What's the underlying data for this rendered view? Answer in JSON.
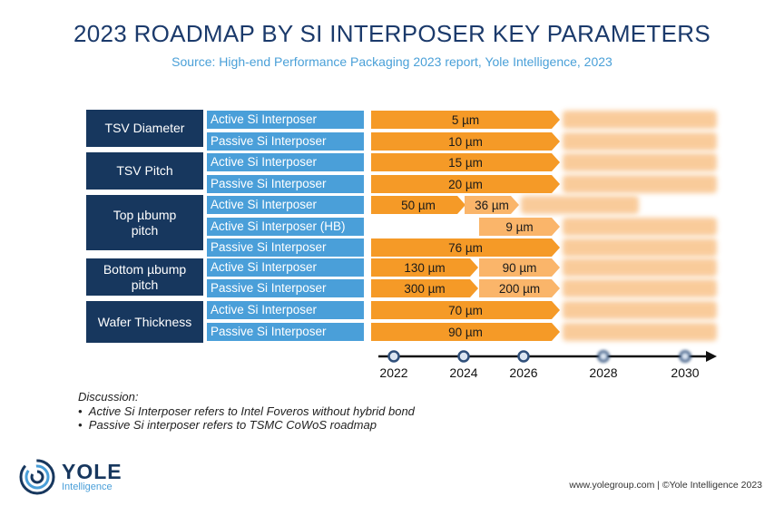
{
  "title": "2023 ROADMAP BY SI INTERPOSER KEY PARAMETERS",
  "subtitle": "Source: High-end Performance Packaging 2023 report, Yole Intelligence, 2023",
  "groups": [
    {
      "label": "TSV Diameter"
    },
    {
      "label": "TSV Pitch"
    },
    {
      "label": "Top µbump pitch"
    },
    {
      "label": "Bottom µbump pitch"
    },
    {
      "label": "Wafer Thickness"
    }
  ],
  "rows": [
    {
      "label": "Active Si Interposer",
      "bars": [
        "5 µm"
      ]
    },
    {
      "label": "Passive Si Interposer",
      "bars": [
        "10 µm"
      ]
    },
    {
      "label": "Active Si Interposer",
      "bars": [
        "15 µm"
      ]
    },
    {
      "label": "Passive Si Interposer",
      "bars": [
        "20 µm"
      ]
    },
    {
      "label": "Active Si Interposer",
      "bars": [
        "50 µm",
        "36 µm"
      ]
    },
    {
      "label": "Active Si Interposer (HB)",
      "bars": [
        "9 µm"
      ]
    },
    {
      "label": "Passive Si Interposer",
      "bars": [
        "76 µm"
      ]
    },
    {
      "label": "Active Si Interposer",
      "bars": [
        "130 µm",
        "90 µm"
      ]
    },
    {
      "label": "Passive Si Interposer",
      "bars": [
        "300 µm",
        "200 µm"
      ]
    },
    {
      "label": "Active Si Interposer",
      "bars": [
        "70 µm"
      ]
    },
    {
      "label": "Passive Si Interposer",
      "bars": [
        "90 µm"
      ]
    }
  ],
  "timeline": {
    "years": [
      "2022",
      "2024",
      "2026",
      "2028",
      "2030"
    ]
  },
  "discussion": {
    "heading": "Discussion:",
    "items": [
      "Active Si Interposer refers to Intel Foveros without hybrid bond",
      "Passive Si interposer refers to TSMC CoWoS roadmap"
    ]
  },
  "logo": {
    "name": "YOLE",
    "sub": "Intelligence"
  },
  "footer": "www.yolegroup.com | ©Yole Intelligence 2023",
  "colors": {
    "navy": "#17375e",
    "blue": "#4a9fd9",
    "orange": "#f59a27",
    "light_orange": "#fab56a"
  }
}
